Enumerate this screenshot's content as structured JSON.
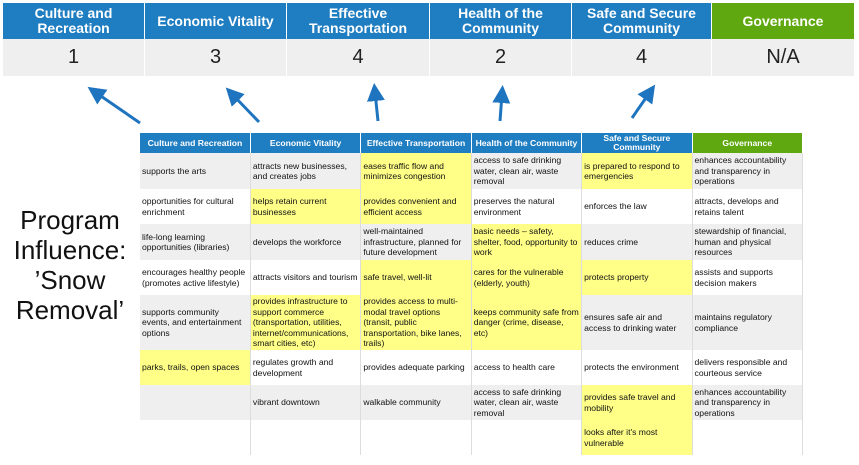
{
  "summary": {
    "columns": [
      {
        "label": "Culture and Recreation",
        "score": "1",
        "color": "#1f7dc1"
      },
      {
        "label": "Economic Vitality",
        "score": "3",
        "color": "#1f7dc1"
      },
      {
        "label": "Effective Transportation",
        "score": "4",
        "color": "#1f7dc1"
      },
      {
        "label": "Health of the Community",
        "score": "2",
        "color": "#1f7dc1"
      },
      {
        "label": "Safe and Secure Community",
        "score": "4",
        "color": "#1f7dc1"
      },
      {
        "label": "Governance",
        "score": "N/A",
        "color": "#5fa80f"
      }
    ]
  },
  "side_label": "Program Influence: ’Snow Removal’",
  "highlight_color": "#ffff88",
  "table": {
    "headers": [
      "Culture and Recreation",
      "Economic Vitality",
      "Effective Transportation",
      "Health of the Community",
      "Safe and Secure Community",
      "Governance"
    ],
    "rows": [
      [
        {
          "t": "supports the arts"
        },
        {
          "t": "attracts new businesses, and creates jobs"
        },
        {
          "t": "eases traffic flow and minimizes congestion",
          "h": true
        },
        {
          "t": "access to safe drinking water, clean air, waste removal"
        },
        {
          "t": "is prepared to respond to emergencies",
          "h": true
        },
        {
          "t": "enhances accountability and transparency in operations"
        }
      ],
      [
        {
          "t": "opportunities for cultural enrichment"
        },
        {
          "t": "helps retain current businesses",
          "h": true
        },
        {
          "t": "provides convenient and efficient access",
          "h": true
        },
        {
          "t": "preserves the natural environment"
        },
        {
          "t": "enforces the law"
        },
        {
          "t": "attracts, develops and retains talent"
        }
      ],
      [
        {
          "t": "life-long learning opportunities (libraries)"
        },
        {
          "t": "develops the workforce"
        },
        {
          "t": "well-maintained infrastructure, planned for future development"
        },
        {
          "t": "basic needs – safety, shelter, food, opportunity to work",
          "h": true
        },
        {
          "t": "reduces crime"
        },
        {
          "t": "stewardship of financial, human and physical resources"
        }
      ],
      [
        {
          "t": "encourages healthy people (promotes active lifestyle)"
        },
        {
          "t": "attracts visitors and tourism"
        },
        {
          "t": "safe travel, well-lit",
          "h": true
        },
        {
          "t": "cares for the vulnerable (elderly, youth)",
          "h": true
        },
        {
          "t": "protects property",
          "h": true
        },
        {
          "t": "assists and supports decision makers"
        }
      ],
      [
        {
          "t": "supports community events, and entertainment options"
        },
        {
          "t": "provides infrastructure to support commerce (transportation, utilities, internet/communications, smart cities, etc)",
          "h": true
        },
        {
          "t": "provides access to multi-modal travel options (transit, public transportation, bike lanes, trails)",
          "h": true
        },
        {
          "t": "keeps community safe from danger (crime, disease, etc)",
          "h": true
        },
        {
          "t": "ensures safe air and access to drinking water"
        },
        {
          "t": "maintains regulatory compliance"
        }
      ],
      [
        {
          "t": "parks, trails, open spaces",
          "h": true
        },
        {
          "t": "regulates growth and development"
        },
        {
          "t": "provides adequate parking"
        },
        {
          "t": "access to health care"
        },
        {
          "t": "protects the environment"
        },
        {
          "t": "delivers responsible and courteous service"
        }
      ],
      [
        {
          "t": ""
        },
        {
          "t": "vibrant downtown"
        },
        {
          "t": "walkable community"
        },
        {
          "t": "access to safe drinking water, clean air, waste removal"
        },
        {
          "t": "provides safe travel and mobility",
          "h": true
        },
        {
          "t": "enhances accountability and transparency in operations"
        }
      ],
      [
        {
          "t": ""
        },
        {
          "t": ""
        },
        {
          "t": ""
        },
        {
          "t": ""
        },
        {
          "t": "looks after it's most vulnerable",
          "h": true
        },
        {
          "t": ""
        }
      ]
    ]
  }
}
